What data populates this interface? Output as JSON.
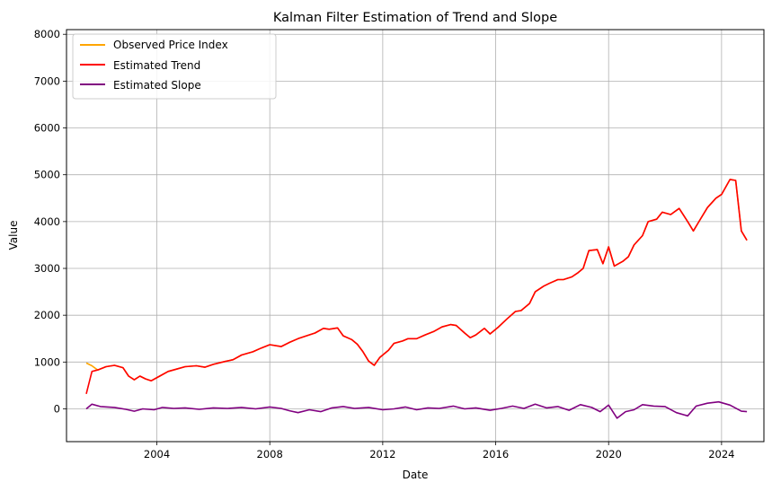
{
  "chart_data": {
    "type": "line",
    "title": "Kalman Filter Estimation of Trend and Slope",
    "xlabel": "Date",
    "ylabel": "Value",
    "xlim": [
      2000.8,
      2025.5
    ],
    "ylim": [
      -700,
      8100
    ],
    "x_ticks": [
      2004,
      2008,
      2012,
      2016,
      2020,
      2024
    ],
    "y_ticks": [
      0,
      1000,
      2000,
      3000,
      4000,
      5000,
      6000,
      7000,
      8000
    ],
    "grid": true,
    "legend_position": "top-left",
    "series": [
      {
        "name": "Observed Price Index",
        "color": "#FFA500",
        "points": [
          [
            2001.5,
            980
          ],
          [
            2001.7,
            920
          ],
          [
            2001.9,
            830
          ],
          [
            2002.2,
            900
          ],
          [
            2002.5,
            930
          ],
          [
            2002.8,
            880
          ],
          [
            2003.0,
            700
          ],
          [
            2003.2,
            620
          ],
          [
            2003.4,
            700
          ],
          [
            2003.6,
            640
          ],
          [
            2003.8,
            600
          ],
          [
            2004.1,
            700
          ],
          [
            2004.4,
            800
          ],
          [
            2004.7,
            850
          ],
          [
            2005.0,
            900
          ],
          [
            2005.4,
            920
          ],
          [
            2005.7,
            890
          ],
          [
            2006.0,
            950
          ],
          [
            2006.4,
            1010
          ],
          [
            2006.7,
            1050
          ],
          [
            2007.0,
            1150
          ],
          [
            2007.4,
            1220
          ],
          [
            2007.7,
            1300
          ],
          [
            2008.0,
            1370
          ],
          [
            2008.4,
            1330
          ],
          [
            2008.7,
            1420
          ],
          [
            2009.0,
            1500
          ],
          [
            2009.3,
            1560
          ],
          [
            2009.6,
            1620
          ],
          [
            2009.9,
            1720
          ],
          [
            2010.1,
            1700
          ],
          [
            2010.4,
            1730
          ],
          [
            2010.6,
            1560
          ],
          [
            2010.9,
            1480
          ],
          [
            2011.1,
            1380
          ],
          [
            2011.3,
            1220
          ],
          [
            2011.5,
            1020
          ],
          [
            2011.7,
            930
          ],
          [
            2011.9,
            1100
          ],
          [
            2012.2,
            1250
          ],
          [
            2012.4,
            1400
          ],
          [
            2012.7,
            1450
          ],
          [
            2012.9,
            1500
          ],
          [
            2013.2,
            1500
          ],
          [
            2013.5,
            1580
          ],
          [
            2013.8,
            1650
          ],
          [
            2014.1,
            1750
          ],
          [
            2014.4,
            1800
          ],
          [
            2014.6,
            1780
          ],
          [
            2014.9,
            1620
          ],
          [
            2015.1,
            1520
          ],
          [
            2015.3,
            1580
          ],
          [
            2015.6,
            1720
          ],
          [
            2015.8,
            1600
          ],
          [
            2016.1,
            1750
          ],
          [
            2016.4,
            1920
          ],
          [
            2016.7,
            2080
          ],
          [
            2016.9,
            2100
          ],
          [
            2017.2,
            2250
          ],
          [
            2017.4,
            2500
          ],
          [
            2017.7,
            2620
          ],
          [
            2017.9,
            2680
          ],
          [
            2018.2,
            2760
          ],
          [
            2018.4,
            2760
          ],
          [
            2018.7,
            2820
          ],
          [
            2018.9,
            2900
          ],
          [
            2019.1,
            3000
          ],
          [
            2019.3,
            3380
          ],
          [
            2019.6,
            3400
          ],
          [
            2019.8,
            3100
          ],
          [
            2020.0,
            3460
          ],
          [
            2020.2,
            3050
          ],
          [
            2020.5,
            3150
          ],
          [
            2020.7,
            3250
          ],
          [
            2020.9,
            3500
          ],
          [
            2021.2,
            3700
          ],
          [
            2021.4,
            4000
          ],
          [
            2021.7,
            4050
          ],
          [
            2021.9,
            4200
          ],
          [
            2022.2,
            4150
          ],
          [
            2022.5,
            4280
          ],
          [
            2022.8,
            4000
          ],
          [
            2023.0,
            3800
          ],
          [
            2023.2,
            4000
          ],
          [
            2023.5,
            4300
          ],
          [
            2023.8,
            4500
          ],
          [
            2024.0,
            4580
          ],
          [
            2024.3,
            4900
          ],
          [
            2024.5,
            4880
          ],
          [
            2024.7,
            3800
          ],
          [
            2024.9,
            3600
          ]
        ]
      },
      {
        "name": "Estimated Trend",
        "color": "#FF0000",
        "points": [
          [
            2001.5,
            320
          ],
          [
            2001.7,
            800
          ],
          [
            2001.9,
            830
          ],
          [
            2002.2,
            900
          ],
          [
            2002.5,
            930
          ],
          [
            2002.8,
            880
          ],
          [
            2003.0,
            700
          ],
          [
            2003.2,
            620
          ],
          [
            2003.4,
            700
          ],
          [
            2003.6,
            640
          ],
          [
            2003.8,
            600
          ],
          [
            2004.1,
            700
          ],
          [
            2004.4,
            800
          ],
          [
            2004.7,
            850
          ],
          [
            2005.0,
            900
          ],
          [
            2005.4,
            920
          ],
          [
            2005.7,
            890
          ],
          [
            2006.0,
            950
          ],
          [
            2006.4,
            1010
          ],
          [
            2006.7,
            1050
          ],
          [
            2007.0,
            1150
          ],
          [
            2007.4,
            1220
          ],
          [
            2007.7,
            1300
          ],
          [
            2008.0,
            1370
          ],
          [
            2008.4,
            1330
          ],
          [
            2008.7,
            1420
          ],
          [
            2009.0,
            1500
          ],
          [
            2009.3,
            1560
          ],
          [
            2009.6,
            1620
          ],
          [
            2009.9,
            1720
          ],
          [
            2010.1,
            1700
          ],
          [
            2010.4,
            1730
          ],
          [
            2010.6,
            1560
          ],
          [
            2010.9,
            1480
          ],
          [
            2011.1,
            1380
          ],
          [
            2011.3,
            1220
          ],
          [
            2011.5,
            1020
          ],
          [
            2011.7,
            930
          ],
          [
            2011.9,
            1100
          ],
          [
            2012.2,
            1250
          ],
          [
            2012.4,
            1400
          ],
          [
            2012.7,
            1450
          ],
          [
            2012.9,
            1500
          ],
          [
            2013.2,
            1500
          ],
          [
            2013.5,
            1580
          ],
          [
            2013.8,
            1650
          ],
          [
            2014.1,
            1750
          ],
          [
            2014.4,
            1800
          ],
          [
            2014.6,
            1780
          ],
          [
            2014.9,
            1620
          ],
          [
            2015.1,
            1520
          ],
          [
            2015.3,
            1580
          ],
          [
            2015.6,
            1720
          ],
          [
            2015.8,
            1600
          ],
          [
            2016.1,
            1750
          ],
          [
            2016.4,
            1920
          ],
          [
            2016.7,
            2080
          ],
          [
            2016.9,
            2100
          ],
          [
            2017.2,
            2250
          ],
          [
            2017.4,
            2500
          ],
          [
            2017.7,
            2620
          ],
          [
            2017.9,
            2680
          ],
          [
            2018.2,
            2760
          ],
          [
            2018.4,
            2760
          ],
          [
            2018.7,
            2820
          ],
          [
            2018.9,
            2900
          ],
          [
            2019.1,
            3000
          ],
          [
            2019.3,
            3380
          ],
          [
            2019.6,
            3400
          ],
          [
            2019.8,
            3100
          ],
          [
            2020.0,
            3460
          ],
          [
            2020.2,
            3050
          ],
          [
            2020.5,
            3150
          ],
          [
            2020.7,
            3250
          ],
          [
            2020.9,
            3500
          ],
          [
            2021.2,
            3700
          ],
          [
            2021.4,
            4000
          ],
          [
            2021.7,
            4050
          ],
          [
            2021.9,
            4200
          ],
          [
            2022.2,
            4150
          ],
          [
            2022.5,
            4280
          ],
          [
            2022.8,
            4000
          ],
          [
            2023.0,
            3800
          ],
          [
            2023.2,
            4000
          ],
          [
            2023.5,
            4300
          ],
          [
            2023.8,
            4500
          ],
          [
            2024.0,
            4580
          ],
          [
            2024.3,
            4900
          ],
          [
            2024.5,
            4880
          ],
          [
            2024.7,
            3800
          ],
          [
            2024.9,
            3600
          ]
        ]
      },
      {
        "name": "Estimated Slope",
        "color": "#800080",
        "points": [
          [
            2001.5,
            0
          ],
          [
            2001.7,
            100
          ],
          [
            2002.0,
            50
          ],
          [
            2002.5,
            30
          ],
          [
            2002.9,
            -10
          ],
          [
            2003.2,
            -50
          ],
          [
            2003.5,
            0
          ],
          [
            2003.9,
            -20
          ],
          [
            2004.2,
            30
          ],
          [
            2004.6,
            10
          ],
          [
            2005.0,
            20
          ],
          [
            2005.5,
            -10
          ],
          [
            2006.0,
            20
          ],
          [
            2006.5,
            10
          ],
          [
            2007.0,
            30
          ],
          [
            2007.5,
            0
          ],
          [
            2008.0,
            40
          ],
          [
            2008.4,
            10
          ],
          [
            2008.7,
            -40
          ],
          [
            2009.0,
            -80
          ],
          [
            2009.4,
            -20
          ],
          [
            2009.8,
            -60
          ],
          [
            2010.2,
            20
          ],
          [
            2010.6,
            50
          ],
          [
            2011.0,
            10
          ],
          [
            2011.5,
            30
          ],
          [
            2012.0,
            -20
          ],
          [
            2012.4,
            0
          ],
          [
            2012.8,
            40
          ],
          [
            2013.2,
            -20
          ],
          [
            2013.6,
            20
          ],
          [
            2014.0,
            10
          ],
          [
            2014.5,
            60
          ],
          [
            2014.9,
            0
          ],
          [
            2015.3,
            20
          ],
          [
            2015.8,
            -30
          ],
          [
            2016.2,
            10
          ],
          [
            2016.6,
            60
          ],
          [
            2017.0,
            10
          ],
          [
            2017.4,
            100
          ],
          [
            2017.8,
            20
          ],
          [
            2018.2,
            50
          ],
          [
            2018.6,
            -30
          ],
          [
            2019.0,
            90
          ],
          [
            2019.4,
            30
          ],
          [
            2019.7,
            -60
          ],
          [
            2020.0,
            80
          ],
          [
            2020.3,
            -200
          ],
          [
            2020.6,
            -60
          ],
          [
            2020.9,
            -20
          ],
          [
            2021.2,
            90
          ],
          [
            2021.6,
            60
          ],
          [
            2022.0,
            50
          ],
          [
            2022.4,
            -80
          ],
          [
            2022.8,
            -150
          ],
          [
            2023.1,
            60
          ],
          [
            2023.5,
            120
          ],
          [
            2023.9,
            150
          ],
          [
            2024.3,
            80
          ],
          [
            2024.7,
            -50
          ],
          [
            2024.9,
            -60
          ]
        ]
      }
    ]
  }
}
